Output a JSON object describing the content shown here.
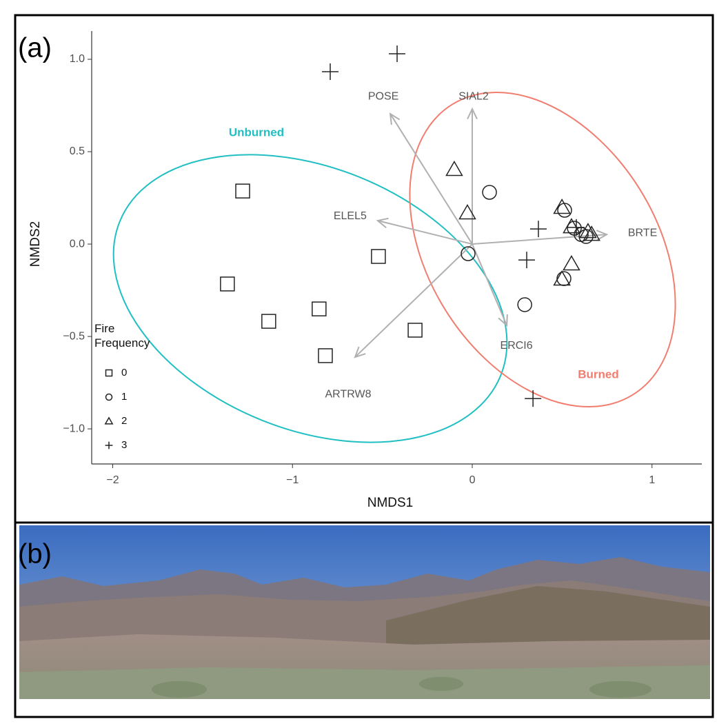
{
  "panels": {
    "a": "(a)",
    "b": "(b)"
  },
  "chart_data": {
    "type": "scatter",
    "x_label": "NMDS1",
    "y_label": "NMDS2",
    "xlim": [
      -2.117,
      1.277
    ],
    "ylim": [
      -1.19,
      1.153
    ],
    "xticks": [
      {
        "value": -2,
        "label": "−2"
      },
      {
        "value": -1,
        "label": "−1"
      },
      0,
      1
    ],
    "yticks": [
      {
        "value": -1,
        "label": "−1.0"
      },
      {
        "value": -0.5,
        "label": "−0.5"
      },
      {
        "value": 0,
        "label": "0.0"
      },
      0.5,
      {
        "value": 1,
        "label": "1.0"
      }
    ],
    "legend_title": "Fire Frequency",
    "series": [
      {
        "name": "0",
        "marker": "square",
        "color": "#222222",
        "x": [
          -1.277,
          -1.362,
          -1.132,
          -0.852,
          -0.522,
          -0.817,
          -0.318
        ],
        "values": [
          0.287,
          -0.216,
          -0.418,
          -0.351,
          -0.067,
          -0.604,
          -0.466
        ]
      },
      {
        "name": "1",
        "marker": "circle",
        "color": "#222222",
        "x": [
          0.096,
          -0.023,
          0.292,
          0.514,
          0.568,
          0.606,
          0.633,
          0.51
        ],
        "values": [
          0.28,
          -0.052,
          -0.328,
          0.183,
          0.086,
          0.052,
          0.041,
          -0.187
        ]
      },
      {
        "name": "2",
        "marker": "triangle",
        "color": "#222222",
        "x": [
          -0.1,
          -0.027,
          0.499,
          0.552,
          0.644,
          0.664,
          0.552,
          0.499
        ],
        "values": [
          0.403,
          0.168,
          0.198,
          0.093,
          0.067,
          0.052,
          -0.108,
          -0.19
        ]
      },
      {
        "name": "3",
        "marker": "plus",
        "color": "#222222",
        "x": [
          -0.418,
          -0.79,
          0.368,
          0.579,
          0.303,
          0.338
        ],
        "values": [
          1.03,
          0.933,
          0.082,
          0.09,
          -0.086,
          -0.836
        ]
      }
    ],
    "vectors": [
      {
        "name": "POSE",
        "x": -0.456,
        "y": 0.705
      },
      {
        "name": "SIAL2",
        "x": 0,
        "y": 0.731
      },
      {
        "name": "BRTE",
        "x": 0.748,
        "y": 0.052
      },
      {
        "name": "ELEL5",
        "x": -0.526,
        "y": 0.127
      },
      {
        "name": "ERCI6",
        "x": 0.192,
        "y": -0.44
      },
      {
        "name": "ARTRW8",
        "x": -0.652,
        "y": -0.612
      }
    ],
    "groups": [
      {
        "name": "Unburned",
        "color": "#1fbfc3"
      },
      {
        "name": "Burned",
        "color": "#f17d6f"
      }
    ]
  }
}
